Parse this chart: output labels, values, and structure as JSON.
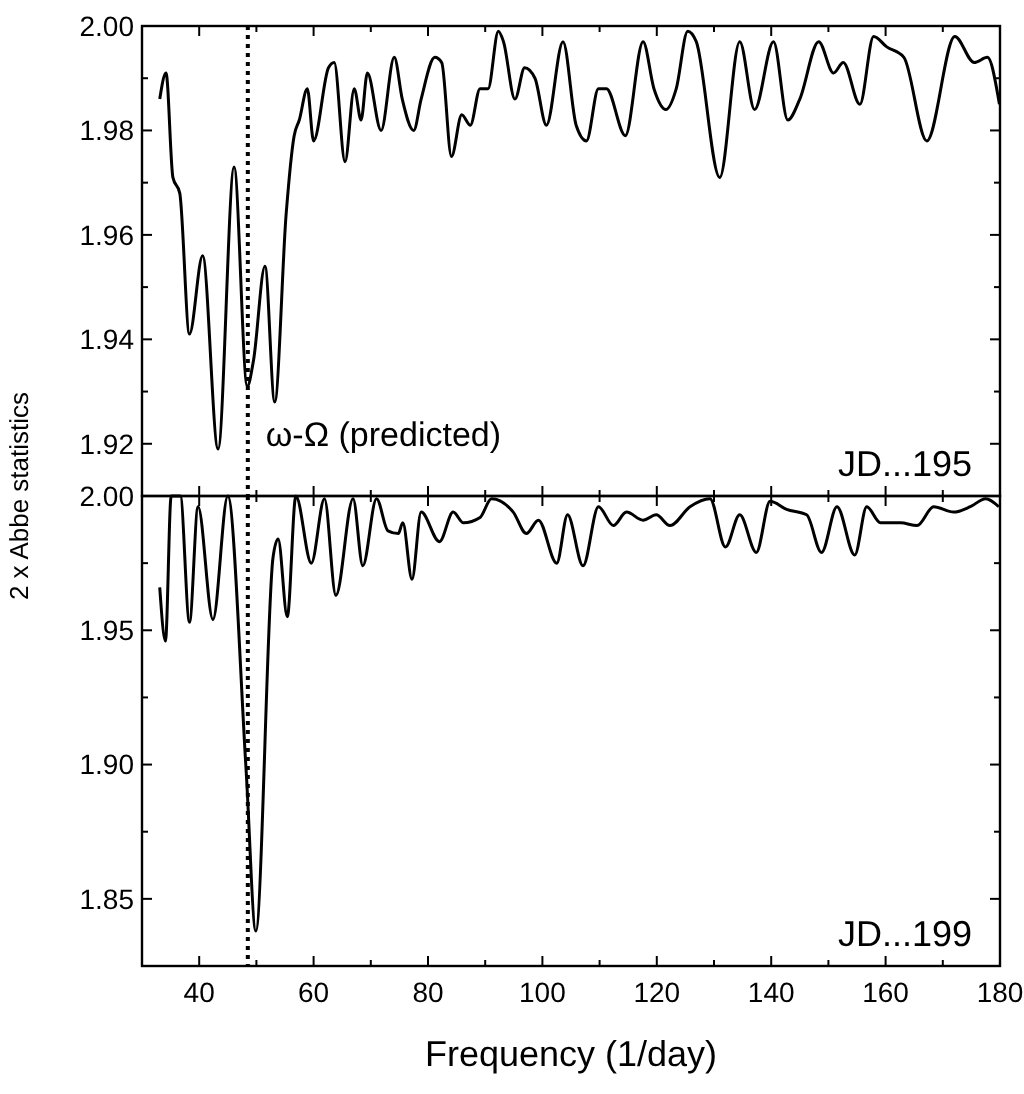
{
  "chart_data": [
    {
      "type": "line",
      "ylabel": "2 x Abbe statistics",
      "xlim": [
        30,
        180
      ],
      "xticks": [
        {
          "value": 30,
          "label": null
        },
        40,
        {
          "value": 50,
          "label": null
        },
        60,
        {
          "value": 70,
          "label": null
        },
        80,
        {
          "value": 90,
          "label": null
        },
        100,
        {
          "value": 110,
          "label": null
        },
        120,
        {
          "value": 130,
          "label": null
        },
        140,
        {
          "value": 150,
          "label": null
        },
        160,
        {
          "value": 170,
          "label": null
        },
        180
      ],
      "ylim": [
        1.91,
        2.0
      ],
      "yticks": [
        {
          "value": 1.91,
          "label": null
        },
        {
          "value": 1.92,
          "label": "1.92"
        },
        {
          "value": 1.93,
          "label": null
        },
        {
          "value": 1.94,
          "label": "1.94"
        },
        {
          "value": 1.95,
          "label": null
        },
        {
          "value": 1.96,
          "label": "1.96"
        },
        {
          "value": 1.97,
          "label": null
        },
        {
          "value": 1.98,
          "label": "1.98"
        },
        {
          "value": 1.99,
          "label": null
        },
        {
          "value": 2.0,
          "label": "2.00"
        }
      ],
      "tick_labels": "y",
      "marker": "none",
      "line_style": "solid",
      "ref_lines": [
        {
          "axis": "x",
          "value": 48.5,
          "line_style": "dotted",
          "color": "#000000"
        }
      ],
      "annotations": [
        "ω-Ω (predicted)",
        "JD...195"
      ],
      "series": [
        {
          "color": "#000000",
          "x": [
            33.1,
            34.2,
            35.4,
            36.6,
            38.3,
            40.6,
            43.3,
            46.1,
            48.4,
            49.5,
            51.5,
            53.2,
            55.2,
            56.6,
            57.5,
            58.9,
            60,
            62.6,
            63.6,
            65.5,
            67.1,
            68.3,
            69.4,
            71.8,
            74.1,
            75.5,
            77.5,
            78.8,
            81.2,
            82.4,
            84.1,
            85.9,
            87.4,
            89.1,
            90.5,
            92.3,
            93.2,
            95.2,
            96.9,
            98.7,
            100.7,
            103.6,
            105.9,
            107.7,
            109.8,
            111.2,
            114.5,
            117.6,
            119.5,
            121.6,
            123.4,
            125.4,
            126.9,
            131,
            134.5,
            137.1,
            140.4,
            142.9,
            145,
            148.3,
            150.9,
            152.6,
            155.5,
            157.9,
            160.2,
            163.2,
            167.2,
            172.1,
            175.5,
            177.8,
            179.9
          ],
          "values": [
            1.986,
            1.991,
            1.971,
            1.968,
            1.941,
            1.956,
            1.919,
            1.973,
            1.931,
            1.936,
            1.954,
            1.928,
            1.964,
            1.979,
            1.982,
            1.988,
            1.978,
            1.992,
            1.993,
            1.974,
            1.988,
            1.982,
            1.991,
            1.98,
            1.994,
            1.986,
            1.98,
            1.986,
            1.994,
            1.993,
            1.975,
            1.983,
            1.981,
            1.988,
            1.988,
            1.999,
            1.997,
            1.986,
            1.992,
            1.99,
            1.981,
            1.997,
            1.981,
            1.978,
            1.988,
            1.988,
            1.979,
            1.997,
            1.988,
            1.984,
            1.988,
            1.999,
            1.997,
            1.971,
            1.997,
            1.984,
            1.997,
            1.982,
            1.986,
            1.997,
            1.991,
            1.993,
            1.985,
            1.998,
            1.996,
            1.994,
            1.978,
            1.998,
            1.993,
            1.994,
            1.985
          ]
        }
      ]
    },
    {
      "type": "line",
      "xlabel": "Frequency (1/day)",
      "xlim": [
        30,
        180
      ],
      "xticks": [
        {
          "value": 30,
          "label": null
        },
        40,
        {
          "value": 50,
          "label": null
        },
        60,
        {
          "value": 70,
          "label": null
        },
        80,
        {
          "value": 90,
          "label": null
        },
        100,
        {
          "value": 110,
          "label": null
        },
        120,
        {
          "value": 130,
          "label": null
        },
        140,
        {
          "value": 150,
          "label": null
        },
        160,
        {
          "value": 170,
          "label": null
        },
        180
      ],
      "ylim": [
        1.825,
        2.0
      ],
      "yticks": [
        {
          "value": 1.825,
          "label": null
        },
        {
          "value": 1.85,
          "label": "1.85"
        },
        {
          "value": 1.875,
          "label": null
        },
        {
          "value": 1.9,
          "label": "1.90"
        },
        {
          "value": 1.925,
          "label": null
        },
        {
          "value": 1.95,
          "label": "1.95"
        },
        {
          "value": 1.975,
          "label": null
        },
        {
          "value": 2.0,
          "label": "2.00"
        }
      ],
      "marker": "none",
      "line_style": "solid",
      "ref_lines": [
        {
          "axis": "x",
          "value": 48.5,
          "line_style": "dotted",
          "color": "#000000"
        }
      ],
      "annotations": [
        "JD...199"
      ],
      "series": [
        {
          "color": "#000000",
          "x": [
            33.1,
            34.1,
            35.1,
            36.7,
            38.3,
            39.8,
            42.4,
            45,
            48.2,
            49.9,
            52.9,
            53.8,
            55.4,
            56.9,
            59.6,
            61.9,
            63.9,
            66.9,
            68.6,
            71,
            73,
            74.8,
            75.6,
            77.2,
            78.8,
            82,
            84.4,
            86.2,
            89.1,
            91.1,
            94.9,
            97.2,
            99.3,
            102.5,
            104.4,
            107.1,
            109.8,
            112.4,
            114.7,
            117.6,
            119.9,
            122.3,
            125.8,
            129.3,
            132,
            134.5,
            137.4,
            139.8,
            142.7,
            146.2,
            148.8,
            151.5,
            154.6,
            156.7,
            159.1,
            162.6,
            165.5,
            168.4,
            171.9,
            174.8,
            177.5,
            179.8
          ],
          "values": [
            1.966,
            1.946,
            2.0,
            2.0,
            1.953,
            1.996,
            1.954,
            2.0,
            1.898,
            1.838,
            1.977,
            1.984,
            1.955,
            2.0,
            1.975,
            1.999,
            1.963,
            1.999,
            1.974,
            1.999,
            1.987,
            1.986,
            1.99,
            1.969,
            1.994,
            1.983,
            1.994,
            1.99,
            1.992,
            1.999,
            1.994,
            1.986,
            1.991,
            1.975,
            1.993,
            1.974,
            1.996,
            1.989,
            1.994,
            1.991,
            1.993,
            1.989,
            1.996,
            1.999,
            1.981,
            1.993,
            1.979,
            1.998,
            1.995,
            1.993,
            1.979,
            1.996,
            1.978,
            1.996,
            1.99,
            1.99,
            1.989,
            1.996,
            1.994,
            1.996,
            1.999,
            1.996
          ]
        }
      ]
    }
  ]
}
